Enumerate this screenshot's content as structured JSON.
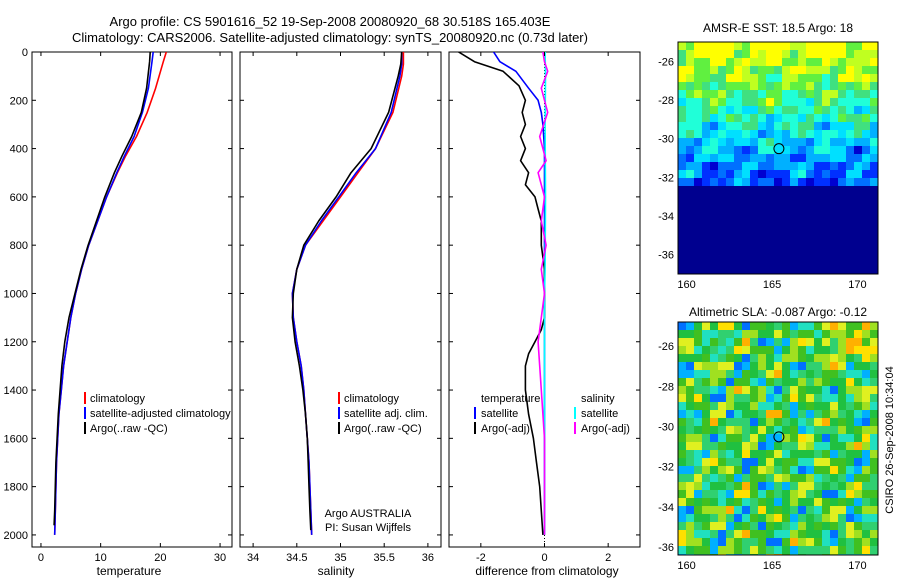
{
  "header": {
    "title_line1": "Argo profile: CS 5901616_52 19-Sep-2008 20080920_68 30.518S 165.403E",
    "title_line2": "Climatology: CARS2006. Satellite-adjusted climatology: synTS_20080920.nc (0.73d later)"
  },
  "side_label": "CSIRO 26-Sep-2008 10:34:04",
  "colors": {
    "red": "#ff0000",
    "blue": "#0000ff",
    "black": "#000000",
    "cyan": "#00ffff",
    "magenta": "#ff00ff"
  },
  "chart_data": [
    {
      "id": "temperature",
      "type": "line",
      "xlabel": "temperature",
      "ylabel": "",
      "xlim": [
        -1.5,
        32
      ],
      "ylim": [
        2050,
        0
      ],
      "xticks": [
        0,
        10,
        20,
        30
      ],
      "yticks": [
        0,
        200,
        400,
        600,
        800,
        1000,
        1200,
        1400,
        1600,
        1800,
        2000
      ],
      "legend": [
        "climatology",
        "satellite-adjusted climatology",
        "Argo(..raw -QC)"
      ],
      "series": [
        {
          "name": "climatology",
          "color": "red",
          "points": [
            [
              21,
              0
            ],
            [
              20.5,
              40
            ],
            [
              19.2,
              150
            ],
            [
              17.8,
              250
            ],
            [
              16.0,
              350
            ],
            [
              14.2,
              430
            ],
            [
              12.8,
              500
            ],
            [
              11.0,
              600
            ],
            [
              9.5,
              700
            ],
            [
              8.0,
              800
            ],
            [
              6.8,
              900
            ],
            [
              5.8,
              1000
            ],
            [
              5.0,
              1100
            ],
            [
              4.4,
              1200
            ],
            [
              3.8,
              1300
            ],
            [
              3.4,
              1400
            ],
            [
              3.0,
              1500
            ],
            [
              2.8,
              1600
            ],
            [
              2.6,
              1700
            ],
            [
              2.5,
              1800
            ],
            [
              2.4,
              1900
            ],
            [
              2.3,
              2000
            ]
          ]
        },
        {
          "name": "satellite-adjusted climatology",
          "color": "blue",
          "points": [
            [
              18.8,
              0
            ],
            [
              18.6,
              40
            ],
            [
              18.0,
              150
            ],
            [
              17.0,
              250
            ],
            [
              15.6,
              350
            ],
            [
              14.0,
              430
            ],
            [
              12.7,
              500
            ],
            [
              11.0,
              600
            ],
            [
              9.5,
              700
            ],
            [
              8.0,
              800
            ],
            [
              6.8,
              900
            ],
            [
              5.8,
              1000
            ],
            [
              5.0,
              1100
            ],
            [
              4.4,
              1200
            ],
            [
              3.8,
              1300
            ],
            [
              3.4,
              1400
            ],
            [
              3.0,
              1500
            ],
            [
              2.8,
              1600
            ],
            [
              2.6,
              1700
            ],
            [
              2.5,
              1800
            ],
            [
              2.4,
              1900
            ],
            [
              2.3,
              2000
            ]
          ]
        },
        {
          "name": "Argo(..raw -QC)",
          "color": "black",
          "points": [
            [
              18.3,
              0
            ],
            [
              18.2,
              40
            ],
            [
              17.7,
              150
            ],
            [
              16.8,
              250
            ],
            [
              15.2,
              350
            ],
            [
              13.6,
              430
            ],
            [
              12.3,
              500
            ],
            [
              10.7,
              600
            ],
            [
              9.3,
              700
            ],
            [
              7.9,
              800
            ],
            [
              6.7,
              900
            ],
            [
              5.7,
              1000
            ],
            [
              4.7,
              1100
            ],
            [
              4.0,
              1200
            ],
            [
              3.5,
              1300
            ],
            [
              3.2,
              1400
            ],
            [
              2.9,
              1500
            ],
            [
              2.7,
              1600
            ],
            [
              2.5,
              1700
            ],
            [
              2.4,
              1800
            ],
            [
              2.3,
              1900
            ],
            [
              2.2,
              1960
            ]
          ]
        }
      ]
    },
    {
      "id": "salinity",
      "type": "line",
      "xlabel": "salinity",
      "ylabel": "",
      "xlim": [
        33.85,
        36.15
      ],
      "ylim": [
        2050,
        0
      ],
      "xticks": [
        34,
        34.5,
        35,
        35.5,
        36
      ],
      "legend": [
        "climatology",
        "satellite adj. clim.",
        "Argo(..raw -QC)"
      ],
      "annotation": [
        "Argo AUSTRALIA",
        "PI: Susan Wijffels"
      ],
      "series": [
        {
          "name": "climatology",
          "color": "red",
          "points": [
            [
              35.72,
              0
            ],
            [
              35.72,
              50
            ],
            [
              35.7,
              100
            ],
            [
              35.6,
              250
            ],
            [
              35.4,
              400
            ],
            [
              35.2,
              500
            ],
            [
              35.0,
              600
            ],
            [
              34.8,
              700
            ],
            [
              34.6,
              800
            ],
            [
              34.5,
              900
            ],
            [
              34.45,
              1000
            ],
            [
              34.46,
              1100
            ],
            [
              34.5,
              1200
            ],
            [
              34.55,
              1300
            ],
            [
              34.58,
              1400
            ],
            [
              34.6,
              1500
            ],
            [
              34.62,
              1600
            ],
            [
              34.64,
              1700
            ],
            [
              34.65,
              1800
            ],
            [
              34.66,
              1900
            ],
            [
              34.67,
              2000
            ]
          ]
        },
        {
          "name": "satellite adj. clim.",
          "color": "blue",
          "points": [
            [
              35.7,
              0
            ],
            [
              35.7,
              50
            ],
            [
              35.68,
              100
            ],
            [
              35.58,
              250
            ],
            [
              35.4,
              400
            ],
            [
              35.18,
              500
            ],
            [
              34.98,
              600
            ],
            [
              34.78,
              700
            ],
            [
              34.6,
              800
            ],
            [
              34.5,
              900
            ],
            [
              34.45,
              1000
            ],
            [
              34.46,
              1100
            ],
            [
              34.5,
              1200
            ],
            [
              34.55,
              1300
            ],
            [
              34.58,
              1400
            ],
            [
              34.6,
              1500
            ],
            [
              34.62,
              1600
            ],
            [
              34.64,
              1700
            ],
            [
              34.65,
              1800
            ],
            [
              34.66,
              1900
            ],
            [
              34.67,
              2000
            ]
          ]
        },
        {
          "name": "Argo(..raw -QC)",
          "color": "black",
          "points": [
            [
              35.7,
              0
            ],
            [
              35.69,
              50
            ],
            [
              35.66,
              100
            ],
            [
              35.55,
              250
            ],
            [
              35.35,
              400
            ],
            [
              35.12,
              500
            ],
            [
              34.95,
              600
            ],
            [
              34.75,
              700
            ],
            [
              34.58,
              800
            ],
            [
              34.5,
              900
            ],
            [
              34.46,
              1000
            ],
            [
              34.45,
              1100
            ],
            [
              34.48,
              1200
            ],
            [
              34.53,
              1300
            ],
            [
              34.57,
              1400
            ],
            [
              34.6,
              1500
            ],
            [
              34.62,
              1600
            ],
            [
              34.63,
              1700
            ],
            [
              34.64,
              1800
            ],
            [
              34.65,
              1900
            ],
            [
              34.66,
              1980
            ]
          ]
        }
      ]
    },
    {
      "id": "difference",
      "type": "line",
      "xlabel": "difference from climatology",
      "ylabel": "",
      "xlim": [
        -3,
        3
      ],
      "ylim": [
        2050,
        0
      ],
      "xticks": [
        -2,
        0,
        2
      ],
      "legend_temperature": {
        "title": "temperature",
        "items": [
          "satellite",
          "Argo(-adj)"
        ]
      },
      "legend_salinity": {
        "title": "salinity",
        "items": [
          "satellite",
          "Argo(-adj)"
        ]
      },
      "series": [
        {
          "name": "temperature satellite",
          "color": "blue",
          "points": [
            [
              -1.6,
              0
            ],
            [
              -1.4,
              40
            ],
            [
              -0.9,
              80
            ],
            [
              -0.5,
              150
            ],
            [
              -0.2,
              200
            ],
            [
              -0.1,
              250
            ],
            [
              -0.05,
              300
            ],
            [
              0,
              400
            ],
            [
              0,
              2000
            ]
          ]
        },
        {
          "name": "temperature Argo(-adj)",
          "color": "black",
          "points": [
            [
              -2.7,
              0
            ],
            [
              -2.2,
              40
            ],
            [
              -1.3,
              80
            ],
            [
              -0.8,
              140
            ],
            [
              -0.6,
              200
            ],
            [
              -0.7,
              250
            ],
            [
              -0.6,
              300
            ],
            [
              -0.75,
              350
            ],
            [
              -0.6,
              400
            ],
            [
              -0.75,
              450
            ],
            [
              -0.5,
              500
            ],
            [
              -0.6,
              550
            ],
            [
              -0.3,
              600
            ],
            [
              -0.2,
              650
            ],
            [
              -0.1,
              700
            ],
            [
              -0.1,
              800
            ],
            [
              0,
              900
            ],
            [
              0,
              1000
            ],
            [
              0,
              1100
            ],
            [
              -0.1,
              1150
            ],
            [
              -0.3,
              1200
            ],
            [
              -0.5,
              1250
            ],
            [
              -0.6,
              1300
            ],
            [
              -0.6,
              1400
            ],
            [
              -0.5,
              1500
            ],
            [
              -0.35,
              1600
            ],
            [
              -0.25,
              1700
            ],
            [
              -0.15,
              1800
            ],
            [
              -0.1,
              1900
            ],
            [
              -0.05,
              2000
            ]
          ]
        },
        {
          "name": "salinity satellite",
          "color": "cyan",
          "points": [
            [
              0.02,
              0
            ],
            [
              0.03,
              100
            ],
            [
              0.02,
              300
            ],
            [
              0.03,
              600
            ],
            [
              0.02,
              900
            ],
            [
              0,
              1000
            ],
            [
              0,
              1200
            ],
            [
              0,
              1500
            ],
            [
              0,
              2000
            ]
          ]
        },
        {
          "name": "salinity Argo(-adj)",
          "color": "magenta",
          "points": [
            [
              -0.05,
              0
            ],
            [
              0,
              40
            ],
            [
              0.1,
              80
            ],
            [
              -0.1,
              150
            ],
            [
              0.1,
              250
            ],
            [
              -0.15,
              350
            ],
            [
              0.05,
              450
            ],
            [
              -0.2,
              500
            ],
            [
              0,
              600
            ],
            [
              -0.1,
              700
            ],
            [
              0.05,
              800
            ],
            [
              -0.1,
              900
            ],
            [
              0,
              1000
            ],
            [
              -0.1,
              1100
            ],
            [
              -0.2,
              1200
            ],
            [
              -0.15,
              1300
            ],
            [
              -0.1,
              1400
            ],
            [
              -0.05,
              1500
            ],
            [
              0,
              1600
            ],
            [
              0,
              1800
            ],
            [
              0,
              2000
            ]
          ]
        }
      ]
    },
    {
      "id": "sst_map",
      "type": "heatmap",
      "title": "AMSR-E SST: 18.5 Argo: 18",
      "xlim": [
        159.5,
        171.2
      ],
      "ylim": [
        -37,
        -25
      ],
      "xticks": [
        160,
        165,
        170
      ],
      "yticks": [
        -26,
        -28,
        -30,
        -32,
        -34,
        -36
      ],
      "marker": [
        165.403,
        -30.518
      ],
      "palette": [
        "#00008f",
        "#0000d0",
        "#0030ff",
        "#0070ff",
        "#00b0ff",
        "#00e0ff",
        "#20ffd8",
        "#40e080",
        "#60f040",
        "#c0ff20",
        "#ffff00"
      ]
    },
    {
      "id": "sla_map",
      "type": "heatmap",
      "title": "Altimetric SLA: -0.087 Argo: -0.12",
      "xlim": [
        159.5,
        171.2
      ],
      "ylim": [
        -36.4,
        -24.8
      ],
      "xticks": [
        160,
        165,
        170
      ],
      "yticks": [
        -26,
        -28,
        -30,
        -32,
        -34,
        -36
      ],
      "marker": [
        165.403,
        -30.518
      ],
      "palette": [
        "#0070ff",
        "#00b0ff",
        "#20e0c0",
        "#30d070",
        "#20c040",
        "#40c020",
        "#a0e020",
        "#e0f020",
        "#ffe000",
        "#ffb000"
      ]
    }
  ]
}
